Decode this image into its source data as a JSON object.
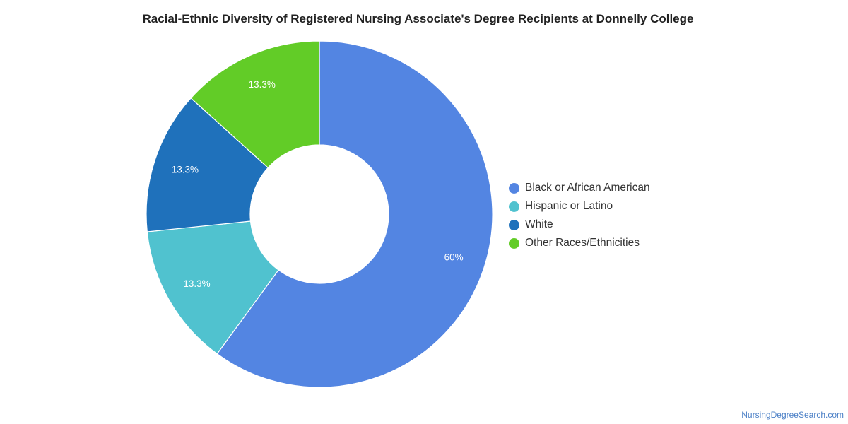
{
  "chart_data": {
    "type": "pie",
    "title": "Racial-Ethnic Diversity of Registered Nursing Associate's Degree Recipients at Donnelly College",
    "categories": [
      "Black or African American",
      "Hispanic or Latino",
      "White",
      "Other Races/Ethnicities"
    ],
    "values": [
      60,
      13.3,
      13.3,
      13.3
    ],
    "value_labels": [
      "60%",
      "13.3%",
      "13.3%",
      "13.3%"
    ],
    "colors": [
      "#5385e2",
      "#50c2cf",
      "#1f71bb",
      "#62cc27"
    ],
    "donut": true,
    "legend": "right"
  },
  "footer": {
    "source": "NursingDegreeSearch.com"
  }
}
